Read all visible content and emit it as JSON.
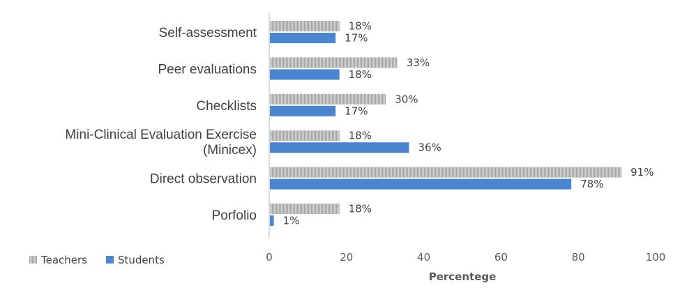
{
  "chart_data": {
    "type": "bar",
    "orientation": "horizontal",
    "categories": [
      "Self-assessment",
      "Peer evaluations",
      "Checklists",
      "Mini-Clinical Evaluation Exercise (Minicex)",
      "Direct observation",
      "Porfolio"
    ],
    "category_lines": [
      [
        "Self-assessment"
      ],
      [
        "Peer evaluations"
      ],
      [
        "Checklists"
      ],
      [
        "Mini-Clinical Evaluation Exercise",
        "(Minicex)"
      ],
      [
        "Direct observation"
      ],
      [
        "Porfolio"
      ]
    ],
    "series": [
      {
        "name": "Teachers",
        "values": [
          18,
          33,
          30,
          18,
          91,
          18
        ],
        "labels": [
          "18%",
          "33%",
          "30%",
          "18%",
          "91%",
          "18%"
        ],
        "color": "#a6a6a6",
        "pattern": "vertical-hatch"
      },
      {
        "name": "Students",
        "values": [
          17,
          18,
          17,
          36,
          78,
          1
        ],
        "labels": [
          "17%",
          "18%",
          "17%",
          "36%",
          "78%",
          "1%"
        ],
        "color": "#4a86d0"
      }
    ],
    "xlabel": "Percentege",
    "ylabel": "",
    "xlim": [
      0,
      100
    ],
    "xticks": [
      "0",
      "20",
      "40",
      "60",
      "80",
      "100"
    ],
    "grid": false,
    "legend_position": "bottom-left"
  },
  "colors": {
    "axis": "#d0d0d0",
    "teachers": "#a6a6a6",
    "teachers_hatch": "#ffffff",
    "students": "#4a86d0"
  }
}
